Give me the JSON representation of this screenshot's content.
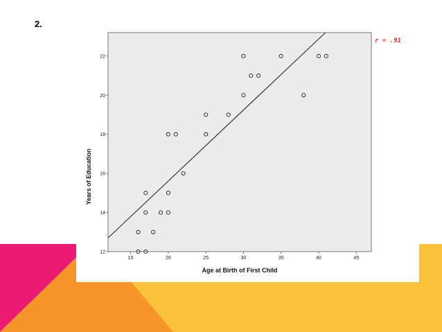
{
  "slide": {
    "number_label": "2."
  },
  "colors": {
    "pink": "#ec1a72",
    "orange": "#f6962a",
    "yellow": "#fdc23c",
    "plot_background": "#ececec",
    "fit_line": "#333333",
    "r_label": "#e0302a"
  },
  "chart_data": {
    "type": "scatter",
    "xlabel": "Age at Birth of First Child",
    "ylabel": "Years of Education",
    "xlim": [
      12,
      47
    ],
    "ylim": [
      12,
      23.2
    ],
    "xticks": [
      15,
      20,
      25,
      30,
      35,
      40,
      45
    ],
    "yticks": [
      12,
      14,
      16,
      18,
      20,
      22
    ],
    "grid": false,
    "marker": "hollow-circle",
    "points": [
      {
        "x": 16,
        "y": 12
      },
      {
        "x": 17,
        "y": 12
      },
      {
        "x": 16,
        "y": 13
      },
      {
        "x": 17,
        "y": 14
      },
      {
        "x": 17,
        "y": 15
      },
      {
        "x": 18,
        "y": 13
      },
      {
        "x": 19,
        "y": 14
      },
      {
        "x": 20,
        "y": 14
      },
      {
        "x": 20,
        "y": 15
      },
      {
        "x": 20,
        "y": 18
      },
      {
        "x": 21,
        "y": 18
      },
      {
        "x": 22,
        "y": 16
      },
      {
        "x": 25,
        "y": 18
      },
      {
        "x": 25,
        "y": 19
      },
      {
        "x": 28,
        "y": 19
      },
      {
        "x": 30,
        "y": 20
      },
      {
        "x": 30,
        "y": 22
      },
      {
        "x": 31,
        "y": 21
      },
      {
        "x": 32,
        "y": 21
      },
      {
        "x": 35,
        "y": 22
      },
      {
        "x": 38,
        "y": 20
      },
      {
        "x": 40,
        "y": 22
      },
      {
        "x": 41,
        "y": 22
      }
    ],
    "fit_line": {
      "x": [
        12,
        40.9
      ],
      "y": [
        12.7,
        23.2
      ]
    },
    "annotation": "r = .91"
  }
}
